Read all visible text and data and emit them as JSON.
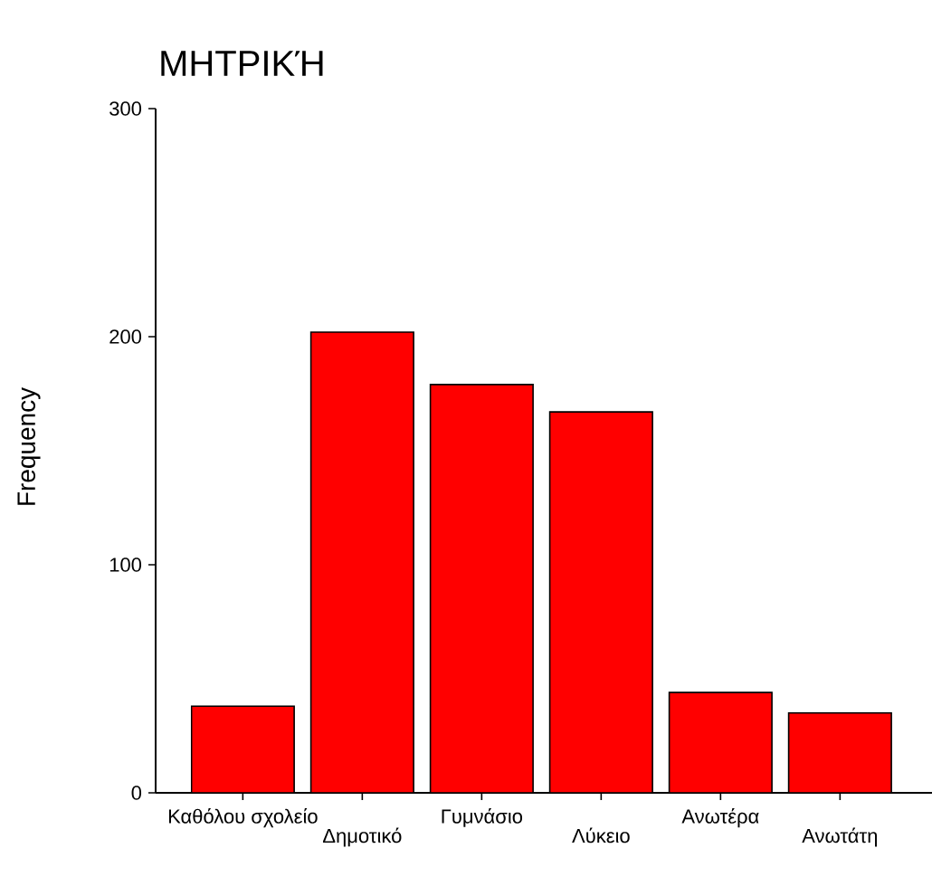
{
  "chart_data": {
    "type": "bar",
    "title": "ΜΗΤΡΙΚΉ",
    "ylabel": "Frequency",
    "categories": [
      "Καθόλου σχολείο",
      "Δημοτικό",
      "Γυμνάσιο",
      "Λύκειο",
      "Ανωτέρα",
      "Ανωτάτη"
    ],
    "values": [
      38,
      202,
      179,
      167,
      44,
      35
    ],
    "color": "#ff0000",
    "ylim": [
      0,
      300
    ],
    "yticks": [
      0,
      100,
      200,
      300
    ],
    "grid": false
  }
}
